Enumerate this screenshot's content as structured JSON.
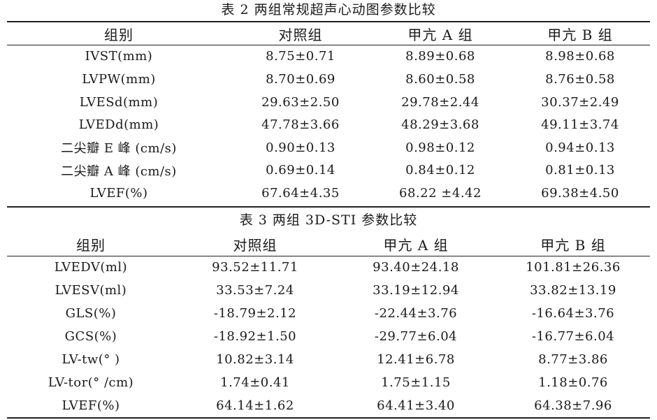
{
  "table2": {
    "caption": "表 2   两组常规超声心动图参数比较",
    "headers": [
      "组别",
      "对照组",
      "甲亢 A 组",
      "甲亢 B 组"
    ],
    "rows": [
      [
        "IVST(mm)",
        "8.75±0.71",
        "8.89±0.68",
        "8.98±0.68"
      ],
      [
        "LVPW(mm)",
        "8.70±0.69",
        "8.60±0.58",
        "8.76±0.58"
      ],
      [
        "LVESd(mm)",
        "29.63±2.50",
        "29.78±2.44",
        "30.37±2.49"
      ],
      [
        "LVEDd(mm)",
        "47.78±3.66",
        "48.29±3.68",
        "49.11±3.74"
      ],
      [
        "二尖瓣 E 峰 (cm/s)",
        "0.90±0.13",
        "0.98±0.12",
        "0.94±0.13"
      ],
      [
        "二尖瓣 A 峰 (cm/s)",
        "0.69±0.14",
        "0.84±0.12",
        "0.81±0.13"
      ],
      [
        "LVEF(%)",
        "67.64±4.35",
        "68.22 ±4.42",
        "69.38±4.50"
      ]
    ]
  },
  "table3": {
    "caption": "表 3   两组 3D-STI 参数比较",
    "headers": [
      "组别",
      "对照组",
      "甲亢 A 组",
      "甲亢 B 组"
    ],
    "rows": [
      [
        "LVEDV(ml)",
        "93.52±11.71",
        "93.40±24.18",
        "101.81±26.36"
      ],
      [
        "LVESV(ml)",
        "33.53±7.24",
        "33.19±12.94",
        "33.82±13.19"
      ],
      [
        "GLS(%)",
        "-18.79±2.12",
        "-22.44±3.76",
        "-16.64±3.76"
      ],
      [
        "GCS(%)",
        "-18.92±1.50",
        "-29.77±6.04",
        "-16.77±6.04"
      ],
      [
        "LV-tw(° )",
        "10.82±3.14",
        "12.41±6.78",
        "8.77±3.86"
      ],
      [
        "LV-tor(° /cm)",
        "1.74±0.41",
        "1.75±1.15",
        "1.18±0.76"
      ],
      [
        "LVEF(%)",
        "64.14±1.62",
        "64.41±3.40",
        "64.38±7.96"
      ]
    ]
  }
}
